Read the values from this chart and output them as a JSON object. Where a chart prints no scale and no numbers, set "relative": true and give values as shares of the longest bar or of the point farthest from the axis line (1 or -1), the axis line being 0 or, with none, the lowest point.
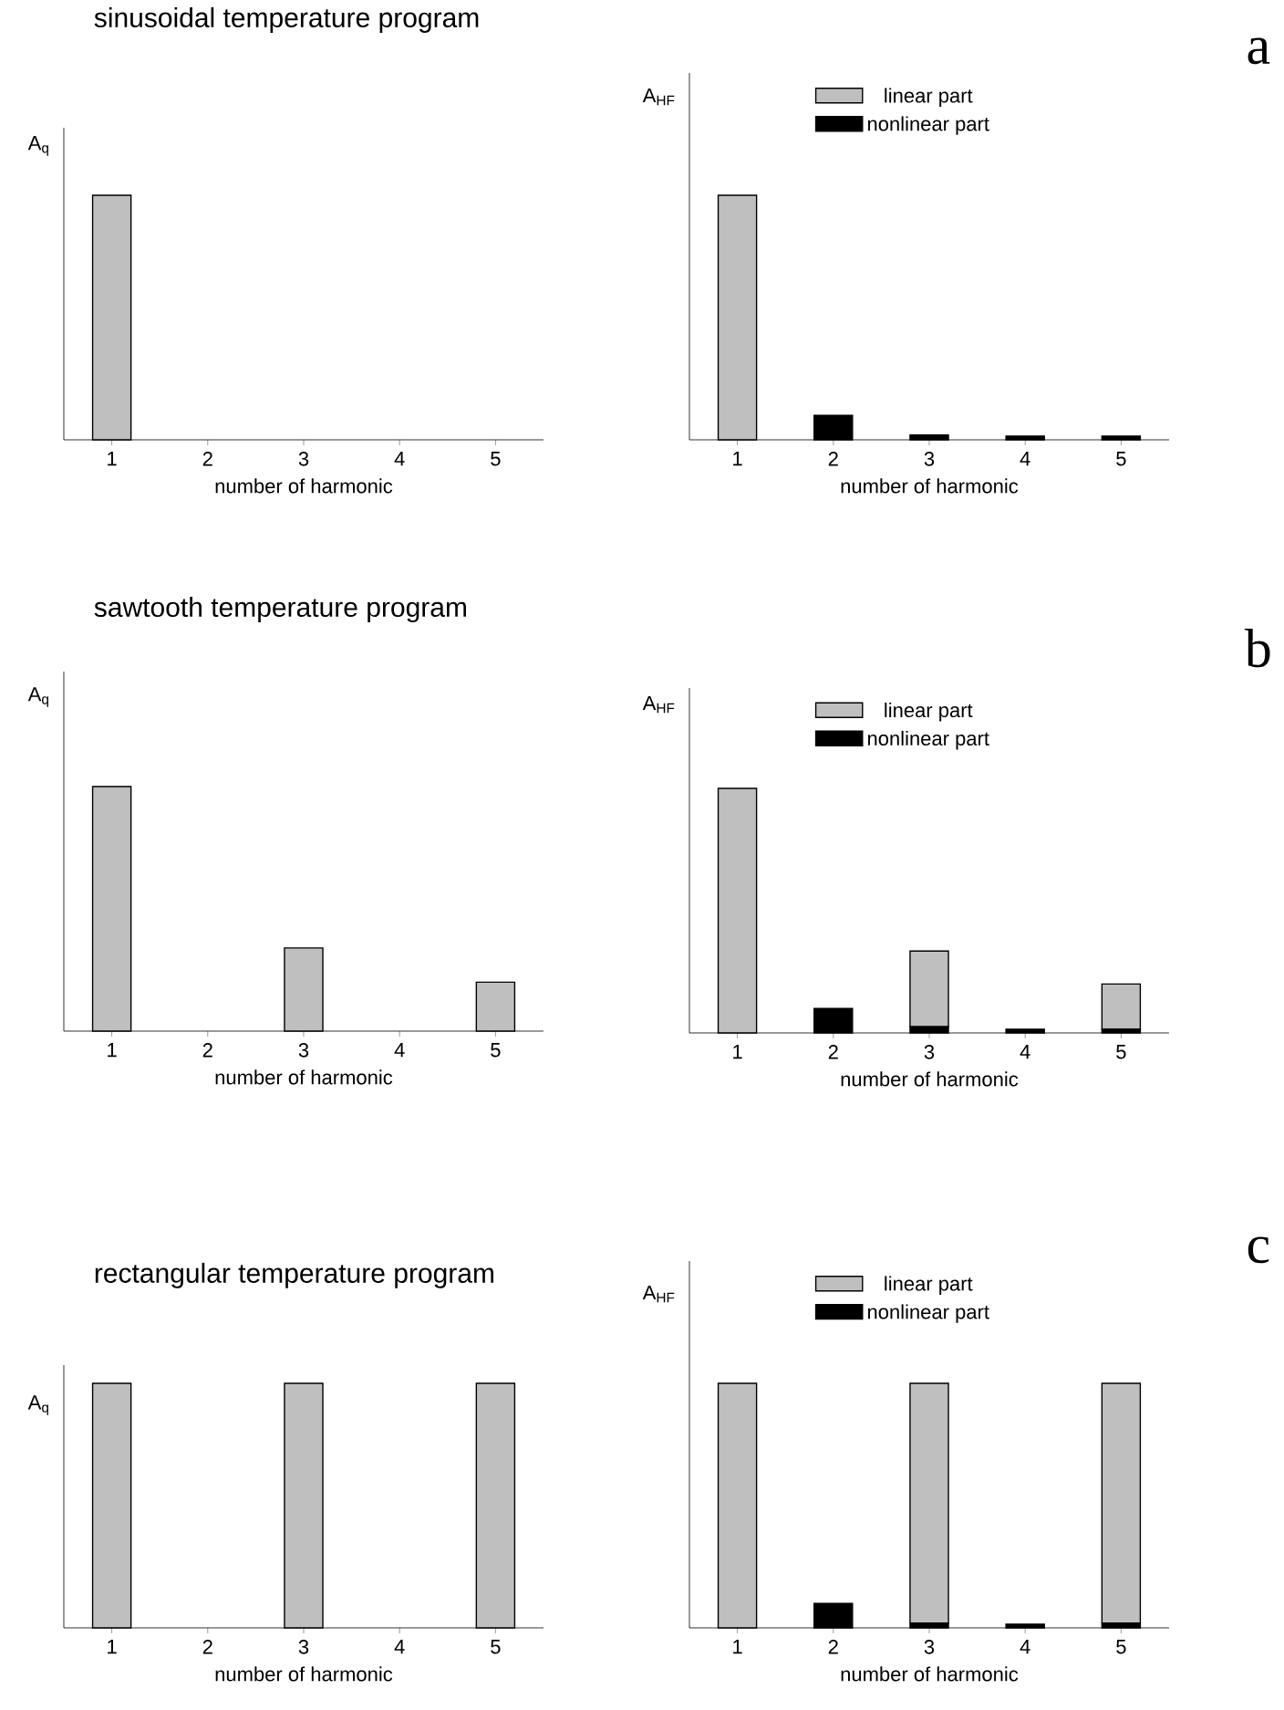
{
  "chart_data": [
    {
      "type": "bar",
      "relative": true,
      "title": "sinusoidal temperature program",
      "xlabel": "number of harmonic",
      "ylabel": "A$_{q}$",
      "categories": [
        "1",
        "2",
        "3",
        "4",
        "5"
      ],
      "color": "#bfbfbf",
      "values": [
        1,
        0,
        0,
        0,
        0
      ]
    },
    {
      "type": "bar",
      "relative": true,
      "stacked": true,
      "legend": "top",
      "xlabel": "number of harmonic",
      "ylabel": "A$_{HF}$",
      "annotations": [
        "a"
      ],
      "categories": [
        "1",
        "2",
        "3",
        "4",
        "5"
      ],
      "series": [
        {
          "name": "nonlinear part",
          "color": "#000000",
          "values": [
            0,
            0.1,
            0.02,
            0.015,
            0.015
          ]
        },
        {
          "name": "linear part",
          "color": "#bfbfbf",
          "values": [
            1,
            0,
            0,
            0,
            0
          ]
        }
      ]
    },
    {
      "type": "bar",
      "relative": true,
      "title": "sawtooth temperature program",
      "xlabel": "number of harmonic",
      "ylabel": "A$_{q}$",
      "categories": [
        "1",
        "2",
        "3",
        "4",
        "5"
      ],
      "color": "#bfbfbf",
      "values": [
        1,
        0,
        0.34,
        0,
        0.2
      ]
    },
    {
      "type": "bar",
      "relative": true,
      "stacked": true,
      "legend": "top",
      "xlabel": "number of harmonic",
      "ylabel": "A$_{HF}$",
      "annotations": [
        "b"
      ],
      "categories": [
        "1",
        "2",
        "3",
        "4",
        "5"
      ],
      "series": [
        {
          "name": "nonlinear part",
          "color": "#000000",
          "values": [
            0,
            0.1,
            0.025,
            0.015,
            0.015
          ]
        },
        {
          "name": "linear part",
          "color": "#bfbfbf",
          "values": [
            1,
            0,
            0.31,
            0,
            0.185
          ]
        }
      ]
    },
    {
      "type": "bar",
      "relative": true,
      "title": "rectangular temperature program",
      "xlabel": "number of harmonic",
      "ylabel": "A$_{q}$",
      "categories": [
        "1",
        "2",
        "3",
        "4",
        "5"
      ],
      "color": "#bfbfbf",
      "values": [
        1,
        0,
        1,
        0,
        1
      ]
    },
    {
      "type": "bar",
      "relative": true,
      "stacked": true,
      "legend": "top",
      "xlabel": "number of harmonic",
      "ylabel": "A$_{HF}$",
      "annotations": [
        "c"
      ],
      "categories": [
        "1",
        "2",
        "3",
        "4",
        "5"
      ],
      "series": [
        {
          "name": "nonlinear part",
          "color": "#000000",
          "values": [
            0,
            0.1,
            0.02,
            0.015,
            0.02
          ]
        },
        {
          "name": "linear part",
          "color": "#bfbfbf",
          "values": [
            1,
            0,
            0.98,
            0,
            0.98
          ]
        }
      ]
    }
  ]
}
